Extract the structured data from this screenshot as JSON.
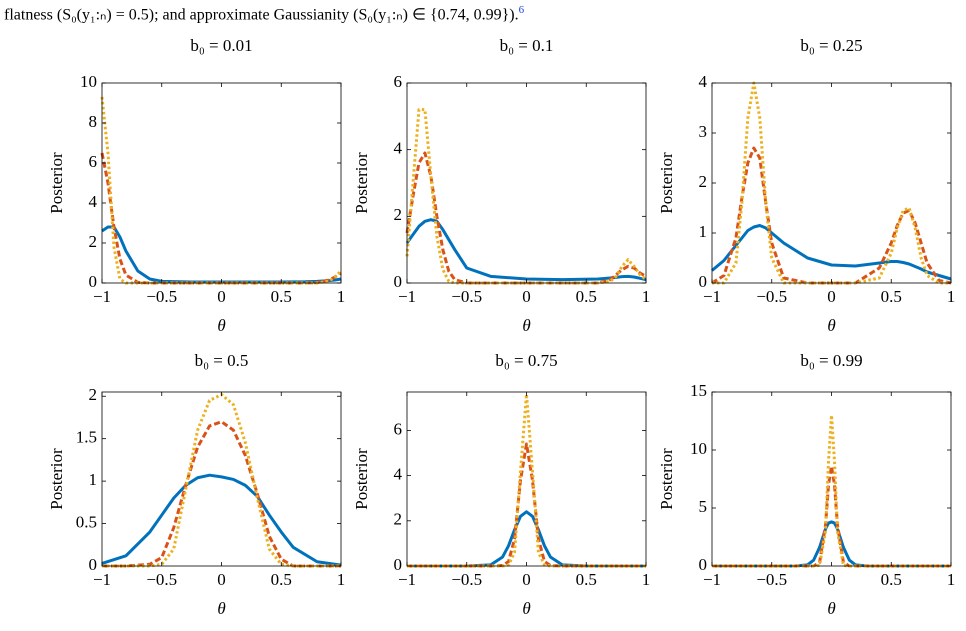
{
  "header": {
    "text": "flatness (S₀(y₁:ₙ) = 0.5); and approximate Gaussianity (S₀(y₁:ₙ) ∈ {0.74, 0.99}).",
    "footnote_mark": "6"
  },
  "chart_data": [
    {
      "type": "line",
      "title": "b₀ = 0.01",
      "x_label": "θ",
      "y_label": "Posterior",
      "x": [
        -1,
        -0.95,
        -0.9,
        -0.85,
        -0.8,
        -0.7,
        -0.6,
        -0.5,
        -0.25,
        0,
        0.25,
        0.5,
        0.7,
        0.8,
        0.9,
        0.95,
        1
      ],
      "series": [
        {
          "color": "#0072bd",
          "values": [
            2.6,
            2.8,
            2.8,
            2.3,
            1.6,
            0.6,
            0.2,
            0.08,
            0.05,
            0.05,
            0.05,
            0.05,
            0.06,
            0.08,
            0.12,
            0.15,
            0.2
          ]
        },
        {
          "color": "#d95319",
          "values": [
            6.5,
            5,
            2.8,
            1.2,
            0.4,
            0.03,
            0,
            0,
            0,
            0,
            0,
            0,
            0,
            0.02,
            0.15,
            0.3,
            0.5
          ]
        },
        {
          "color": "#edb120",
          "values": [
            9.3,
            6.5,
            1.8,
            0.2,
            0,
            0,
            0,
            0,
            0,
            0,
            0,
            0,
            0,
            0,
            0.1,
            0.3,
            0.6
          ]
        }
      ],
      "xlim": [
        -1,
        1
      ],
      "xticks": [
        {
          "value": -1,
          "label": "−1"
        },
        {
          "value": -0.5,
          "label": "−0.5"
        },
        0,
        0.5,
        1
      ],
      "ylim": [
        0,
        10
      ],
      "yticks": [
        0,
        2,
        4,
        6,
        8,
        10
      ]
    },
    {
      "type": "line",
      "title": "b₀ = 0.1",
      "x_label": "θ",
      "y_label": "Posterior",
      "x": [
        -1,
        -0.95,
        -0.9,
        -0.85,
        -0.8,
        -0.75,
        -0.7,
        -0.65,
        -0.6,
        -0.5,
        -0.3,
        0,
        0.3,
        0.6,
        0.7,
        0.75,
        0.8,
        0.85,
        0.9,
        0.95,
        1
      ],
      "series": [
        {
          "color": "#0072bd",
          "values": [
            1.2,
            1.45,
            1.7,
            1.85,
            1.9,
            1.85,
            1.6,
            1.3,
            1.0,
            0.45,
            0.2,
            0.12,
            0.1,
            0.12,
            0.15,
            0.17,
            0.19,
            0.2,
            0.18,
            0.14,
            0.1
          ]
        },
        {
          "color": "#d95319",
          "values": [
            1.5,
            2.6,
            3.6,
            3.9,
            3.2,
            2.0,
            1.0,
            0.35,
            0.1,
            0,
            0,
            0,
            0,
            0,
            0.1,
            0.25,
            0.4,
            0.5,
            0.45,
            0.3,
            0.2
          ]
        },
        {
          "color": "#edb120",
          "values": [
            0.8,
            3.0,
            5.2,
            5.2,
            3.2,
            1.4,
            0.4,
            0.05,
            0,
            0,
            0,
            0,
            0,
            0,
            0.05,
            0.2,
            0.5,
            0.7,
            0.5,
            0.25,
            0.1
          ]
        }
      ],
      "xlim": [
        -1,
        1
      ],
      "xticks": [
        {
          "value": -1,
          "label": "−1"
        },
        {
          "value": -0.5,
          "label": "−0.5"
        },
        0,
        0.5,
        1
      ],
      "ylim": [
        0,
        6
      ],
      "yticks": [
        0,
        2,
        4,
        6
      ]
    },
    {
      "type": "line",
      "title": "b₀ = 0.25",
      "x_label": "θ",
      "y_label": "Posterior",
      "x": [
        -1,
        -0.9,
        -0.8,
        -0.75,
        -0.7,
        -0.65,
        -0.6,
        -0.55,
        -0.5,
        -0.4,
        -0.2,
        0,
        0.2,
        0.4,
        0.5,
        0.55,
        0.6,
        0.65,
        0.7,
        0.75,
        0.8,
        0.9,
        1
      ],
      "series": [
        {
          "color": "#0072bd",
          "values": [
            0.25,
            0.45,
            0.75,
            0.9,
            1.05,
            1.12,
            1.15,
            1.1,
            1.0,
            0.8,
            0.5,
            0.36,
            0.34,
            0.4,
            0.43,
            0.43,
            0.41,
            0.38,
            0.33,
            0.28,
            0.22,
            0.15,
            0.08
          ]
        },
        {
          "color": "#d95319",
          "values": [
            0,
            0.15,
            0.9,
            1.7,
            2.4,
            2.7,
            2.5,
            1.6,
            0.8,
            0.1,
            0,
            0,
            0,
            0.3,
            0.8,
            1.15,
            1.4,
            1.45,
            1.2,
            0.8,
            0.4,
            0.05,
            0
          ]
        },
        {
          "color": "#edb120",
          "values": [
            0,
            0,
            0.4,
            1.6,
            3.3,
            4.0,
            3.3,
            1.6,
            0.5,
            0,
            0,
            0,
            0,
            0.1,
            0.6,
            1.1,
            1.45,
            1.5,
            1.1,
            0.5,
            0.15,
            0,
            0
          ]
        }
      ],
      "xlim": [
        -1,
        1
      ],
      "xticks": [
        {
          "value": -1,
          "label": "−1"
        },
        {
          "value": -0.5,
          "label": "−0.5"
        },
        0,
        0.5,
        1
      ],
      "ylim": [
        0,
        4
      ],
      "yticks": [
        0,
        1,
        2,
        3,
        4
      ]
    },
    {
      "type": "line",
      "title": "b₀ = 0.5",
      "x_label": "θ",
      "y_label": "Posterior",
      "x": [
        -1,
        -0.8,
        -0.6,
        -0.5,
        -0.4,
        -0.3,
        -0.2,
        -0.1,
        0,
        0.1,
        0.2,
        0.3,
        0.4,
        0.5,
        0.6,
        0.8,
        1
      ],
      "series": [
        {
          "color": "#0072bd",
          "values": [
            0.03,
            0.12,
            0.4,
            0.6,
            0.8,
            0.95,
            1.04,
            1.07,
            1.05,
            1.02,
            0.95,
            0.82,
            0.6,
            0.4,
            0.22,
            0.05,
            0.01
          ]
        },
        {
          "color": "#d95319",
          "values": [
            0,
            0,
            0.02,
            0.1,
            0.45,
            0.95,
            1.4,
            1.65,
            1.7,
            1.6,
            1.3,
            0.85,
            0.35,
            0.08,
            0,
            0,
            0
          ]
        },
        {
          "color": "#edb120",
          "values": [
            0,
            0,
            0,
            0.02,
            0.2,
            0.9,
            1.6,
            1.95,
            2.02,
            1.9,
            1.45,
            0.8,
            0.2,
            0.02,
            0,
            0,
            0
          ]
        }
      ],
      "xlim": [
        -1,
        1
      ],
      "xticks": [
        {
          "value": -1,
          "label": "−1"
        },
        {
          "value": -0.5,
          "label": "−0.5"
        },
        0,
        0.5,
        1
      ],
      "ylim": [
        0,
        2.05
      ],
      "yticks": [
        0,
        0.5,
        1,
        1.5,
        2
      ]
    },
    {
      "type": "line",
      "title": "b₀ = 0.75",
      "x_label": "θ",
      "y_label": "Posterior",
      "x": [
        -1,
        -0.5,
        -0.3,
        -0.2,
        -0.15,
        -0.1,
        -0.05,
        0,
        0.05,
        0.1,
        0.15,
        0.2,
        0.3,
        0.5,
        1
      ],
      "series": [
        {
          "color": "#0072bd",
          "values": [
            0,
            0,
            0.05,
            0.4,
            0.9,
            1.6,
            2.2,
            2.4,
            2.2,
            1.6,
            0.9,
            0.4,
            0.05,
            0,
            0
          ]
        },
        {
          "color": "#d95319",
          "values": [
            0,
            0,
            0,
            0.02,
            0.2,
            1.2,
            3.8,
            5.4,
            3.8,
            1.2,
            0.2,
            0.02,
            0,
            0,
            0
          ]
        },
        {
          "color": "#edb120",
          "values": [
            0,
            0,
            0,
            0,
            0.05,
            0.6,
            4.2,
            7.6,
            4.2,
            0.6,
            0.05,
            0,
            0,
            0,
            0
          ]
        }
      ],
      "xlim": [
        -1,
        1
      ],
      "xticks": [
        {
          "value": -1,
          "label": "−1"
        },
        {
          "value": -0.5,
          "label": "−0.5"
        },
        0,
        0.5,
        1
      ],
      "ylim": [
        0,
        7.7
      ],
      "yticks": [
        0,
        2,
        4,
        6
      ]
    },
    {
      "type": "line",
      "title": "b₀ = 0.99",
      "x_label": "θ",
      "y_label": "Posterior",
      "x": [
        -1,
        -0.5,
        -0.3,
        -0.2,
        -0.15,
        -0.1,
        -0.05,
        -0.025,
        0,
        0.025,
        0.05,
        0.1,
        0.15,
        0.2,
        0.3,
        0.5,
        1
      ],
      "series": [
        {
          "color": "#0072bd",
          "values": [
            0,
            0,
            0,
            0.1,
            0.5,
            1.6,
            3.2,
            3.7,
            3.8,
            3.7,
            3.2,
            1.6,
            0.5,
            0.1,
            0,
            0,
            0
          ]
        },
        {
          "color": "#d95319",
          "values": [
            0,
            0,
            0,
            0,
            0,
            0.3,
            3.5,
            7,
            8.6,
            7,
            3.5,
            0.3,
            0,
            0,
            0,
            0,
            0
          ]
        },
        {
          "color": "#edb120",
          "values": [
            0,
            0,
            0,
            0,
            0,
            0.05,
            3,
            9,
            13,
            9,
            3,
            0.05,
            0,
            0,
            0,
            0,
            0
          ]
        }
      ],
      "xlim": [
        -1,
        1
      ],
      "xticks": [
        {
          "value": -1,
          "label": "−1"
        },
        {
          "value": -0.5,
          "label": "−0.5"
        },
        0,
        0.5,
        1
      ],
      "ylim": [
        0,
        15
      ],
      "yticks": [
        0,
        5,
        10,
        15
      ]
    }
  ]
}
